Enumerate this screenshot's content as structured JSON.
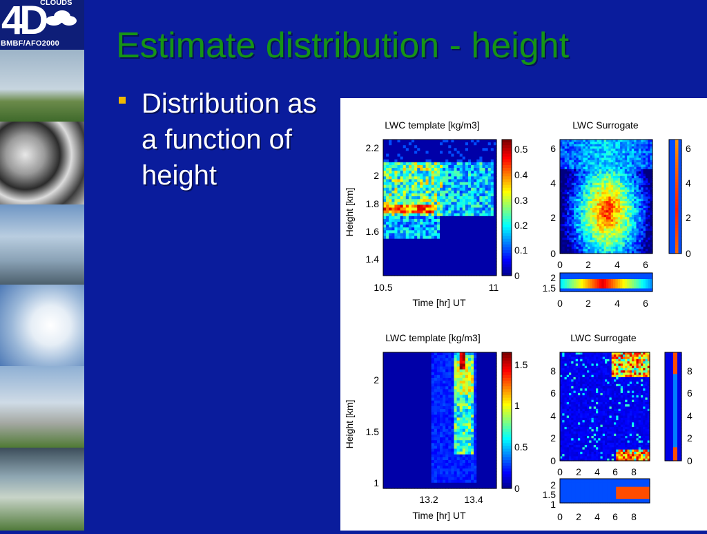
{
  "logo": {
    "big": "4D",
    "small": "CLOUDS",
    "sub": "BMBF/AFO2000"
  },
  "title": "Estimate distribution - height",
  "bullet": "Distribution as a function of height",
  "colors": {
    "background": "#0a1c9c",
    "title": "#169416",
    "bullet_marker": "#f0b800"
  },
  "chart_data": [
    {
      "type": "heatmap",
      "title": "LWC template [kg/m3]",
      "xlabel": "Time [hr] UT",
      "ylabel": "Height [km]",
      "xticks": [
        "10.5",
        "11"
      ],
      "yticks": [
        "2.2",
        "2",
        "1.8",
        "1.6",
        "1.4"
      ],
      "colorbar_ticks": [
        "0.5",
        "0.4",
        "0.3",
        "0.2",
        "0.1",
        "0"
      ]
    },
    {
      "type": "heatmap",
      "title": "LWC Surrogate",
      "xticks": [
        "0",
        "2",
        "4",
        "6"
      ],
      "yticks": [
        "6",
        "4",
        "2",
        "0"
      ],
      "side_yticks": [
        "6",
        "4",
        "2",
        "0"
      ],
      "bottom_yticks": [
        "2",
        "1.5"
      ],
      "bottom_xticks": [
        "0",
        "2",
        "4",
        "6"
      ]
    },
    {
      "type": "heatmap",
      "title": "LWC template [kg/m3]",
      "xlabel": "Time [hr] UT",
      "ylabel": "Height [km]",
      "xticks": [
        "13.2",
        "13.4"
      ],
      "yticks": [
        "2",
        "1.5",
        "1"
      ],
      "colorbar_ticks": [
        "1.5",
        "1",
        "0.5",
        "0"
      ]
    },
    {
      "type": "heatmap",
      "title": "LWC Surrogate",
      "xticks": [
        "0",
        "2",
        "4",
        "6",
        "8"
      ],
      "yticks": [
        "8",
        "6",
        "4",
        "2",
        "0"
      ],
      "side_yticks": [
        "8",
        "6",
        "4",
        "2",
        "0"
      ],
      "bottom_yticks": [
        "2",
        "1.5",
        "1"
      ],
      "bottom_xticks": [
        "0",
        "2",
        "4",
        "6",
        "8"
      ]
    }
  ]
}
